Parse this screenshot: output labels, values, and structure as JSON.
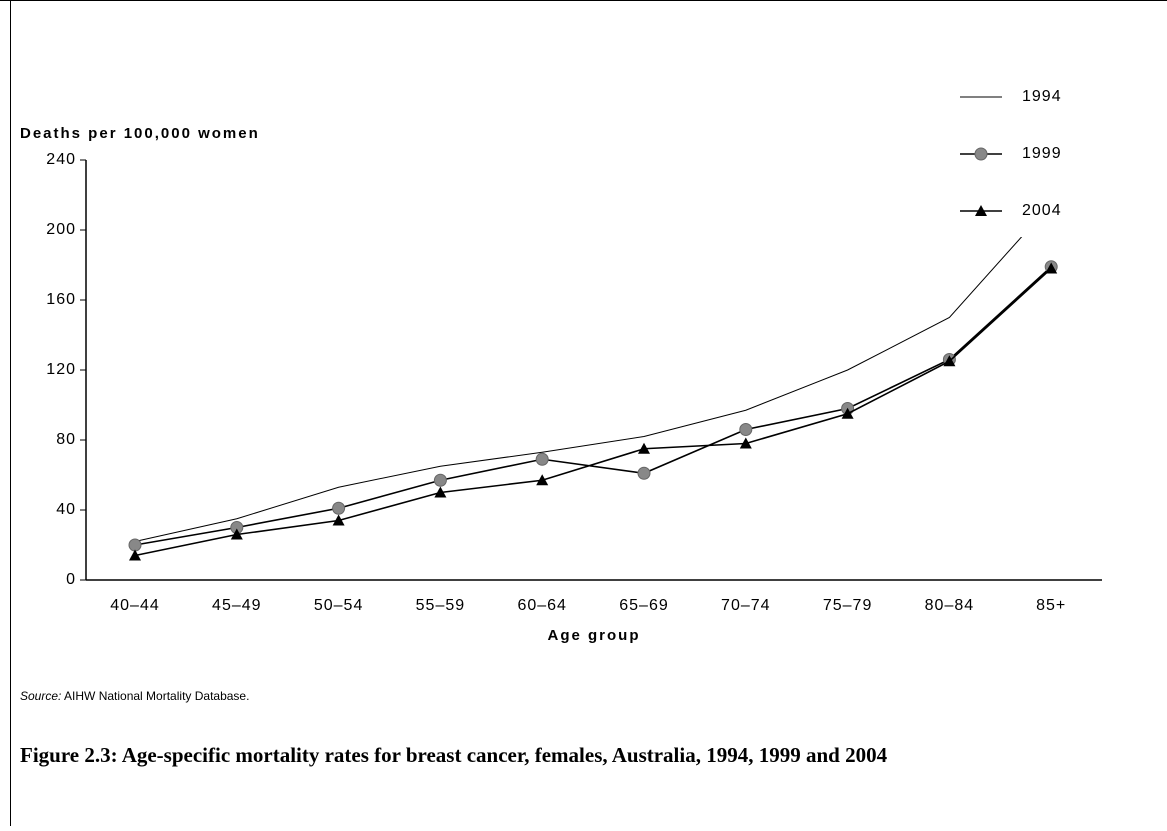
{
  "chart_data": {
    "type": "line",
    "y_label": "Deaths per 100,000 women",
    "x_label": "Age group",
    "categories": [
      "40–44",
      "45–49",
      "50–54",
      "55–59",
      "60–64",
      "65–69",
      "70–74",
      "75–79",
      "80–84",
      "85+"
    ],
    "series": [
      {
        "name": "1994",
        "color": "#000000",
        "marker": "none",
        "values": [
          22,
          35,
          53,
          65,
          73,
          82,
          97,
          120,
          150,
          215
        ]
      },
      {
        "name": "1999",
        "color": "#000000",
        "marker": "circle",
        "values": [
          20,
          30,
          41,
          57,
          69,
          61,
          86,
          98,
          126,
          179
        ]
      },
      {
        "name": "2004",
        "color": "#000000",
        "marker": "triangle",
        "values": [
          14,
          26,
          34,
          50,
          57,
          75,
          78,
          95,
          125,
          178
        ]
      }
    ],
    "ylim": [
      0,
      240
    ],
    "yticks": [
      0,
      40,
      80,
      120,
      160,
      200,
      240
    ],
    "legend": "top-right"
  },
  "source_label": "Source:",
  "source": "AIHW National Mortality Database.",
  "caption": "Figure 2.3: Age-specific mortality rates for breast cancer, females, Australia, 1994, 1999 and 2004"
}
